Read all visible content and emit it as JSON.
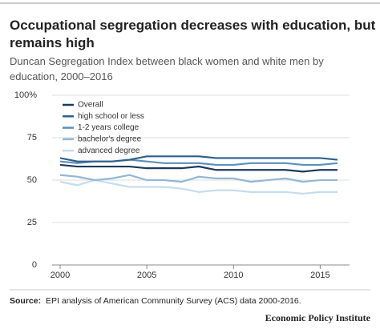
{
  "chart_data": {
    "type": "line",
    "title": "Occupational segregation decreases with education, but remains high",
    "subtitle": "Duncan Segregation Index between black women and white men by education, 2000–2016",
    "x": [
      2000,
      2001,
      2002,
      2003,
      2004,
      2005,
      2006,
      2007,
      2008,
      2009,
      2010,
      2011,
      2012,
      2013,
      2014,
      2015,
      2016
    ],
    "series": [
      {
        "name": "Overall",
        "color": "#1b3a5c",
        "values": [
          59,
          58,
          58,
          58,
          58,
          57,
          57,
          57,
          58,
          56,
          56,
          56,
          56,
          56,
          55,
          56,
          56
        ]
      },
      {
        "name": "high school or less",
        "color": "#2f5f8c",
        "values": [
          63,
          61,
          61,
          61,
          62,
          64,
          64,
          64,
          64,
          63,
          63,
          63,
          63,
          63,
          63,
          63,
          62
        ]
      },
      {
        "name": "1-2 years college",
        "color": "#5d8fbc",
        "values": [
          61,
          60,
          61,
          61,
          62,
          61,
          60,
          60,
          60,
          59,
          59,
          60,
          60,
          60,
          59,
          59,
          60
        ]
      },
      {
        "name": "bachelor's degree",
        "color": "#93b7d6",
        "values": [
          53,
          52,
          50,
          51,
          53,
          50,
          50,
          49,
          52,
          51,
          51,
          49,
          50,
          51,
          49,
          50,
          50
        ]
      },
      {
        "name": "advanced degree",
        "color": "#c6dded",
        "values": [
          49,
          47,
          50,
          48,
          46,
          46,
          46,
          45,
          43,
          44,
          44,
          43,
          43,
          43,
          42,
          43,
          43
        ]
      }
    ],
    "xlim": [
      2000,
      2016
    ],
    "xticks": [
      2000,
      2005,
      2010,
      2015
    ],
    "ylim": [
      0,
      100
    ],
    "yticks": [
      0,
      25,
      50,
      75,
      {
        "value": 100,
        "label": "100%"
      }
    ],
    "grid": true,
    "source_label": "Source:",
    "source": "EPI analysis of American Community Survey (ACS) data 2000-2016.",
    "publisher": "Economic Policy Institute"
  }
}
